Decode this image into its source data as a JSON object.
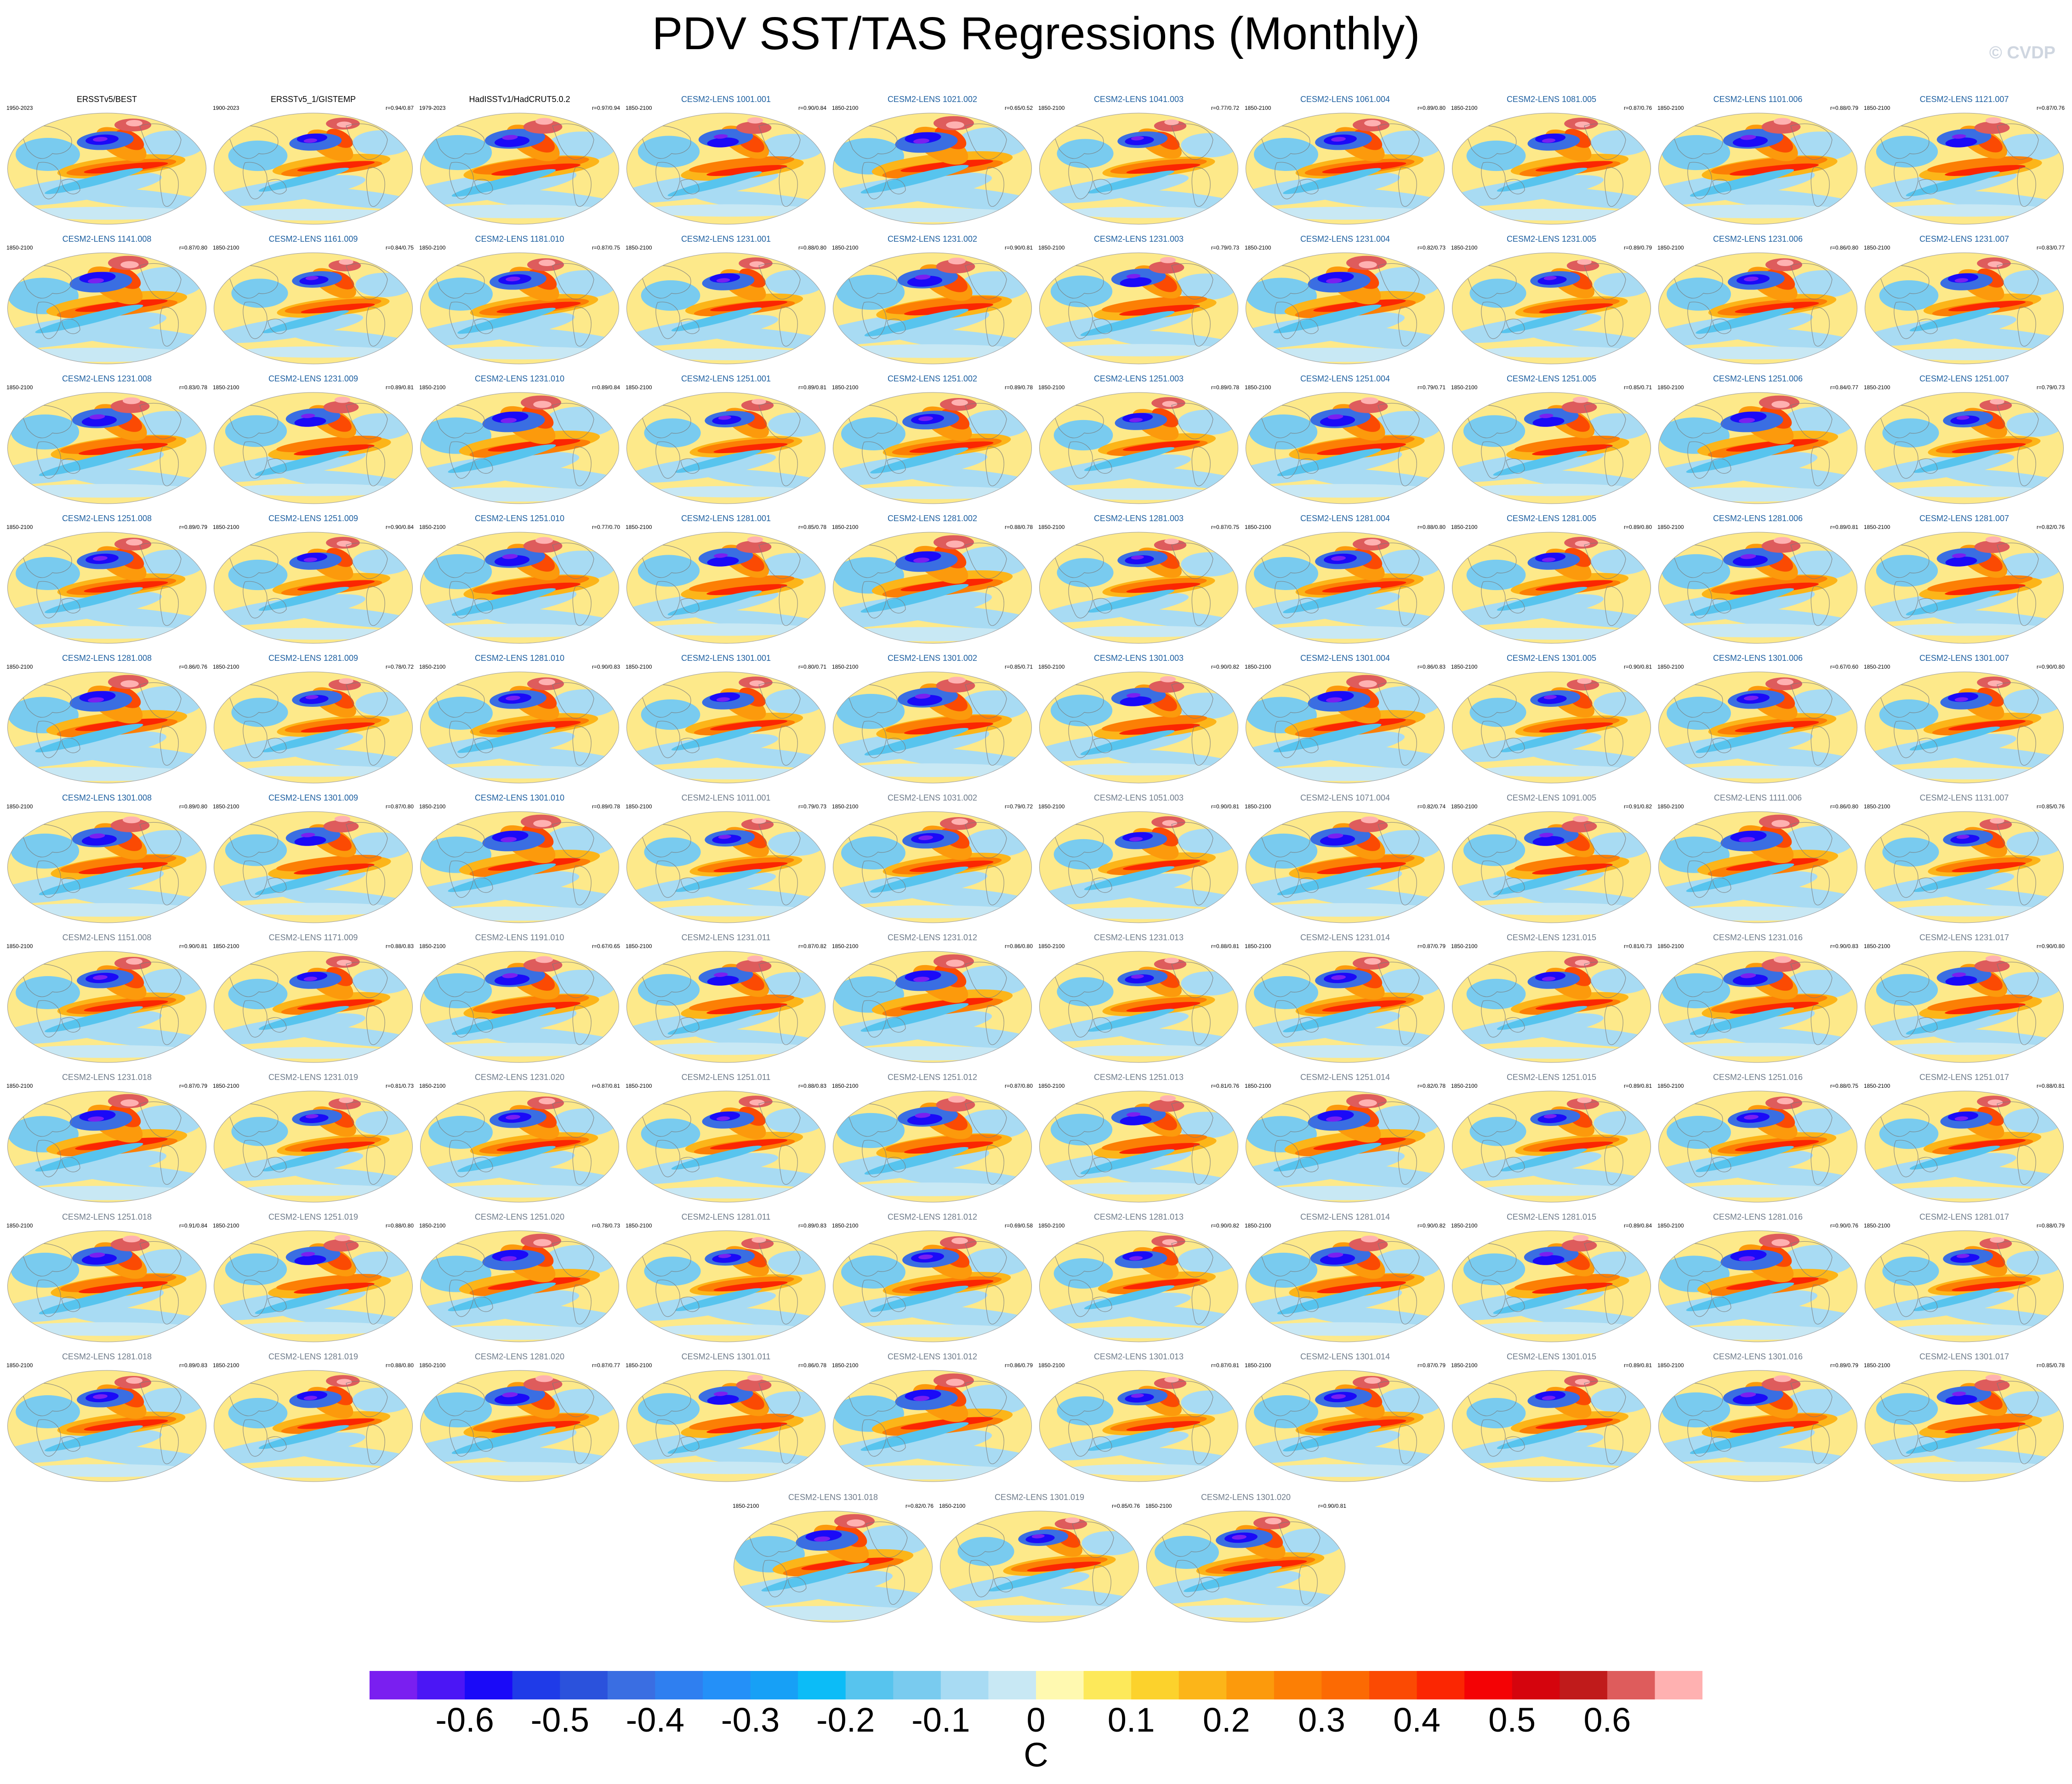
{
  "title": "PDV SST/TAS Regressions (Monthly)",
  "watermark": "© CVDP",
  "observations_color": "#000000",
  "model_colors": [
    "#1d5fa0",
    "#6e7b8a"
  ],
  "panels": [
    {
      "title": "ERSSTv5/BEST",
      "years": "1950-2023",
      "stat": "",
      "style": 0,
      "color": 0
    },
    {
      "title": "ERSSTv5_1/GISTEMP",
      "years": "1900-2023",
      "stat": "r=0.94/0.87",
      "style": 1,
      "color": 0
    },
    {
      "title": "HadISSTv1/HadCRUT5.0.2",
      "years": "1979-2023",
      "stat": "r=0.97/0.94",
      "style": 2,
      "color": 0
    },
    {
      "title": "CESM2-LENS 1001.001",
      "years": "1850-2100",
      "stat": "r=0.90/0.84",
      "style": 3,
      "color": 1
    },
    {
      "title": "CESM2-LENS 1021.002",
      "years": "1850-2100",
      "stat": "r=0.65/0.52",
      "style": 4,
      "color": 1
    },
    {
      "title": "CESM2-LENS 1041.003",
      "years": "1850-2100",
      "stat": "r=0.77/0.72",
      "style": 5,
      "color": 1
    },
    {
      "title": "CESM2-LENS 1061.004",
      "years": "1850-2100",
      "stat": "r=0.89/0.80",
      "style": 0,
      "color": 1
    },
    {
      "title": "CESM2-LENS 1081.005",
      "years": "1850-2100",
      "stat": "r=0.87/0.76",
      "style": 1,
      "color": 1
    },
    {
      "title": "CESM2-LENS 1101.006",
      "years": "1850-2100",
      "stat": "r=0.88/0.79",
      "style": 2,
      "color": 1
    },
    {
      "title": "CESM2-LENS 1121.007",
      "years": "1850-2100",
      "stat": "r=0.87/0.76",
      "style": 3,
      "color": 1
    },
    {
      "title": "CESM2-LENS 1141.008",
      "years": "1850-2100",
      "stat": "r=0.87/0.80",
      "style": 4,
      "color": 1
    },
    {
      "title": "CESM2-LENS 1161.009",
      "years": "1850-2100",
      "stat": "r=0.84/0.75",
      "style": 5,
      "color": 1
    },
    {
      "title": "CESM2-LENS 1181.010",
      "years": "1850-2100",
      "stat": "r=0.87/0.75",
      "style": 0,
      "color": 1
    },
    {
      "title": "CESM2-LENS 1231.001",
      "years": "1850-2100",
      "stat": "r=0.88/0.80",
      "style": 1,
      "color": 1
    },
    {
      "title": "CESM2-LENS 1231.002",
      "years": "1850-2100",
      "stat": "r=0.90/0.81",
      "style": 2,
      "color": 1
    },
    {
      "title": "CESM2-LENS 1231.003",
      "years": "1850-2100",
      "stat": "r=0.79/0.73",
      "style": 3,
      "color": 1
    },
    {
      "title": "CESM2-LENS 1231.004",
      "years": "1850-2100",
      "stat": "r=0.82/0.73",
      "style": 4,
      "color": 1
    },
    {
      "title": "CESM2-LENS 1231.005",
      "years": "1850-2100",
      "stat": "r=0.89/0.79",
      "style": 5,
      "color": 1
    },
    {
      "title": "CESM2-LENS 1231.006",
      "years": "1850-2100",
      "stat": "r=0.86/0.80",
      "style": 0,
      "color": 1
    },
    {
      "title": "CESM2-LENS 1231.007",
      "years": "1850-2100",
      "stat": "r=0.83/0.77",
      "style": 1,
      "color": 1
    },
    {
      "title": "CESM2-LENS 1231.008",
      "years": "1850-2100",
      "stat": "r=0.83/0.78",
      "style": 2,
      "color": 1
    },
    {
      "title": "CESM2-LENS 1231.009",
      "years": "1850-2100",
      "stat": "r=0.89/0.81",
      "style": 3,
      "color": 1
    },
    {
      "title": "CESM2-LENS 1231.010",
      "years": "1850-2100",
      "stat": "r=0.89/0.84",
      "style": 4,
      "color": 1
    },
    {
      "title": "CESM2-LENS 1251.001",
      "years": "1850-2100",
      "stat": "r=0.89/0.81",
      "style": 5,
      "color": 1
    },
    {
      "title": "CESM2-LENS 1251.002",
      "years": "1850-2100",
      "stat": "r=0.89/0.78",
      "style": 0,
      "color": 1
    },
    {
      "title": "CESM2-LENS 1251.003",
      "years": "1850-2100",
      "stat": "r=0.89/0.78",
      "style": 1,
      "color": 1
    },
    {
      "title": "CESM2-LENS 1251.004",
      "years": "1850-2100",
      "stat": "r=0.79/0.71",
      "style": 2,
      "color": 1
    },
    {
      "title": "CESM2-LENS 1251.005",
      "years": "1850-2100",
      "stat": "r=0.85/0.71",
      "style": 3,
      "color": 1
    },
    {
      "title": "CESM2-LENS 1251.006",
      "years": "1850-2100",
      "stat": "r=0.84/0.77",
      "style": 4,
      "color": 1
    },
    {
      "title": "CESM2-LENS 1251.007",
      "years": "1850-2100",
      "stat": "r=0.79/0.73",
      "style": 5,
      "color": 1
    },
    {
      "title": "CESM2-LENS 1251.008",
      "years": "1850-2100",
      "stat": "r=0.89/0.79",
      "style": 0,
      "color": 1
    },
    {
      "title": "CESM2-LENS 1251.009",
      "years": "1850-2100",
      "stat": "r=0.90/0.84",
      "style": 1,
      "color": 1
    },
    {
      "title": "CESM2-LENS 1251.010",
      "years": "1850-2100",
      "stat": "r=0.77/0.70",
      "style": 2,
      "color": 1
    },
    {
      "title": "CESM2-LENS 1281.001",
      "years": "1850-2100",
      "stat": "r=0.85/0.78",
      "style": 3,
      "color": 1
    },
    {
      "title": "CESM2-LENS 1281.002",
      "years": "1850-2100",
      "stat": "r=0.88/0.78",
      "style": 4,
      "color": 1
    },
    {
      "title": "CESM2-LENS 1281.003",
      "years": "1850-2100",
      "stat": "r=0.87/0.75",
      "style": 5,
      "color": 1
    },
    {
      "title": "CESM2-LENS 1281.004",
      "years": "1850-2100",
      "stat": "r=0.88/0.80",
      "style": 0,
      "color": 1
    },
    {
      "title": "CESM2-LENS 1281.005",
      "years": "1850-2100",
      "stat": "r=0.89/0.80",
      "style": 1,
      "color": 1
    },
    {
      "title": "CESM2-LENS 1281.006",
      "years": "1850-2100",
      "stat": "r=0.89/0.81",
      "style": 2,
      "color": 1
    },
    {
      "title": "CESM2-LENS 1281.007",
      "years": "1850-2100",
      "stat": "r=0.82/0.76",
      "style": 3,
      "color": 1
    },
    {
      "title": "CESM2-LENS 1281.008",
      "years": "1850-2100",
      "stat": "r=0.86/0.76",
      "style": 4,
      "color": 1
    },
    {
      "title": "CESM2-LENS 1281.009",
      "years": "1850-2100",
      "stat": "r=0.78/0.72",
      "style": 5,
      "color": 1
    },
    {
      "title": "CESM2-LENS 1281.010",
      "years": "1850-2100",
      "stat": "r=0.90/0.83",
      "style": 0,
      "color": 1
    },
    {
      "title": "CESM2-LENS 1301.001",
      "years": "1850-2100",
      "stat": "r=0.80/0.71",
      "style": 1,
      "color": 1
    },
    {
      "title": "CESM2-LENS 1301.002",
      "years": "1850-2100",
      "stat": "r=0.85/0.71",
      "style": 2,
      "color": 1
    },
    {
      "title": "CESM2-LENS 1301.003",
      "years": "1850-2100",
      "stat": "r=0.90/0.82",
      "style": 3,
      "color": 1
    },
    {
      "title": "CESM2-LENS 1301.004",
      "years": "1850-2100",
      "stat": "r=0.86/0.83",
      "style": 4,
      "color": 1
    },
    {
      "title": "CESM2-LENS 1301.005",
      "years": "1850-2100",
      "stat": "r=0.90/0.81",
      "style": 5,
      "color": 1
    },
    {
      "title": "CESM2-LENS 1301.006",
      "years": "1850-2100",
      "stat": "r=0.67/0.60",
      "style": 0,
      "color": 1
    },
    {
      "title": "CESM2-LENS 1301.007",
      "years": "1850-2100",
      "stat": "r=0.90/0.80",
      "style": 1,
      "color": 1
    },
    {
      "title": "CESM2-LENS 1301.008",
      "years": "1850-2100",
      "stat": "r=0.89/0.80",
      "style": 2,
      "color": 1
    },
    {
      "title": "CESM2-LENS 1301.009",
      "years": "1850-2100",
      "stat": "r=0.87/0.80",
      "style": 3,
      "color": 1
    },
    {
      "title": "CESM2-LENS 1301.010",
      "years": "1850-2100",
      "stat": "r=0.89/0.78",
      "style": 4,
      "color": 1
    },
    {
      "title": "CESM2-LENS 1011.001",
      "years": "1850-2100",
      "stat": "r=0.79/0.73",
      "style": 5,
      "color": 2
    },
    {
      "title": "CESM2-LENS 1031.002",
      "years": "1850-2100",
      "stat": "r=0.79/0.72",
      "style": 0,
      "color": 2
    },
    {
      "title": "CESM2-LENS 1051.003",
      "years": "1850-2100",
      "stat": "r=0.90/0.81",
      "style": 1,
      "color": 2
    },
    {
      "title": "CESM2-LENS 1071.004",
      "years": "1850-2100",
      "stat": "r=0.82/0.74",
      "style": 2,
      "color": 2
    },
    {
      "title": "CESM2-LENS 1091.005",
      "years": "1850-2100",
      "stat": "r=0.91/0.82",
      "style": 3,
      "color": 2
    },
    {
      "title": "CESM2-LENS 1111.006",
      "years": "1850-2100",
      "stat": "r=0.86/0.80",
      "style": 4,
      "color": 2
    },
    {
      "title": "CESM2-LENS 1131.007",
      "years": "1850-2100",
      "stat": "r=0.85/0.76",
      "style": 5,
      "color": 2
    },
    {
      "title": "CESM2-LENS 1151.008",
      "years": "1850-2100",
      "stat": "r=0.90/0.81",
      "style": 0,
      "color": 2
    },
    {
      "title": "CESM2-LENS 1171.009",
      "years": "1850-2100",
      "stat": "r=0.88/0.83",
      "style": 1,
      "color": 2
    },
    {
      "title": "CESM2-LENS 1191.010",
      "years": "1850-2100",
      "stat": "r=0.67/0.65",
      "style": 2,
      "color": 2
    },
    {
      "title": "CESM2-LENS 1231.011",
      "years": "1850-2100",
      "stat": "r=0.87/0.82",
      "style": 3,
      "color": 2
    },
    {
      "title": "CESM2-LENS 1231.012",
      "years": "1850-2100",
      "stat": "r=0.86/0.80",
      "style": 4,
      "color": 2
    },
    {
      "title": "CESM2-LENS 1231.013",
      "years": "1850-2100",
      "stat": "r=0.88/0.81",
      "style": 5,
      "color": 2
    },
    {
      "title": "CESM2-LENS 1231.014",
      "years": "1850-2100",
      "stat": "r=0.87/0.79",
      "style": 0,
      "color": 2
    },
    {
      "title": "CESM2-LENS 1231.015",
      "years": "1850-2100",
      "stat": "r=0.81/0.73",
      "style": 1,
      "color": 2
    },
    {
      "title": "CESM2-LENS 1231.016",
      "years": "1850-2100",
      "stat": "r=0.90/0.83",
      "style": 2,
      "color": 2
    },
    {
      "title": "CESM2-LENS 1231.017",
      "years": "1850-2100",
      "stat": "r=0.90/0.80",
      "style": 3,
      "color": 2
    },
    {
      "title": "CESM2-LENS 1231.018",
      "years": "1850-2100",
      "stat": "r=0.87/0.79",
      "style": 4,
      "color": 2
    },
    {
      "title": "CESM2-LENS 1231.019",
      "years": "1850-2100",
      "stat": "r=0.81/0.73",
      "style": 5,
      "color": 2
    },
    {
      "title": "CESM2-LENS 1231.020",
      "years": "1850-2100",
      "stat": "r=0.87/0.81",
      "style": 0,
      "color": 2
    },
    {
      "title": "CESM2-LENS 1251.011",
      "years": "1850-2100",
      "stat": "r=0.88/0.83",
      "style": 1,
      "color": 2
    },
    {
      "title": "CESM2-LENS 1251.012",
      "years": "1850-2100",
      "stat": "r=0.87/0.80",
      "style": 2,
      "color": 2
    },
    {
      "title": "CESM2-LENS 1251.013",
      "years": "1850-2100",
      "stat": "r=0.81/0.76",
      "style": 3,
      "color": 2
    },
    {
      "title": "CESM2-LENS 1251.014",
      "years": "1850-2100",
      "stat": "r=0.82/0.78",
      "style": 4,
      "color": 2
    },
    {
      "title": "CESM2-LENS 1251.015",
      "years": "1850-2100",
      "stat": "r=0.89/0.81",
      "style": 5,
      "color": 2
    },
    {
      "title": "CESM2-LENS 1251.016",
      "years": "1850-2100",
      "stat": "r=0.88/0.75",
      "style": 0,
      "color": 2
    },
    {
      "title": "CESM2-LENS 1251.017",
      "years": "1850-2100",
      "stat": "r=0.88/0.81",
      "style": 1,
      "color": 2
    },
    {
      "title": "CESM2-LENS 1251.018",
      "years": "1850-2100",
      "stat": "r=0.91/0.84",
      "style": 2,
      "color": 2
    },
    {
      "title": "CESM2-LENS 1251.019",
      "years": "1850-2100",
      "stat": "r=0.88/0.80",
      "style": 3,
      "color": 2
    },
    {
      "title": "CESM2-LENS 1251.020",
      "years": "1850-2100",
      "stat": "r=0.78/0.73",
      "style": 4,
      "color": 2
    },
    {
      "title": "CESM2-LENS 1281.011",
      "years": "1850-2100",
      "stat": "r=0.89/0.83",
      "style": 5,
      "color": 2
    },
    {
      "title": "CESM2-LENS 1281.012",
      "years": "1850-2100",
      "stat": "r=0.69/0.58",
      "style": 0,
      "color": 2
    },
    {
      "title": "CESM2-LENS 1281.013",
      "years": "1850-2100",
      "stat": "r=0.90/0.82",
      "style": 1,
      "color": 2
    },
    {
      "title": "CESM2-LENS 1281.014",
      "years": "1850-2100",
      "stat": "r=0.90/0.82",
      "style": 2,
      "color": 2
    },
    {
      "title": "CESM2-LENS 1281.015",
      "years": "1850-2100",
      "stat": "r=0.89/0.84",
      "style": 3,
      "color": 2
    },
    {
      "title": "CESM2-LENS 1281.016",
      "years": "1850-2100",
      "stat": "r=0.90/0.76",
      "style": 4,
      "color": 2
    },
    {
      "title": "CESM2-LENS 1281.017",
      "years": "1850-2100",
      "stat": "r=0.88/0.79",
      "style": 5,
      "color": 2
    },
    {
      "title": "CESM2-LENS 1281.018",
      "years": "1850-2100",
      "stat": "r=0.89/0.83",
      "style": 0,
      "color": 2
    },
    {
      "title": "CESM2-LENS 1281.019",
      "years": "1850-2100",
      "stat": "r=0.88/0.80",
      "style": 1,
      "color": 2
    },
    {
      "title": "CESM2-LENS 1281.020",
      "years": "1850-2100",
      "stat": "r=0.87/0.77",
      "style": 2,
      "color": 2
    },
    {
      "title": "CESM2-LENS 1301.011",
      "years": "1850-2100",
      "stat": "r=0.86/0.78",
      "style": 3,
      "color": 2
    },
    {
      "title": "CESM2-LENS 1301.012",
      "years": "1850-2100",
      "stat": "r=0.86/0.79",
      "style": 4,
      "color": 2
    },
    {
      "title": "CESM2-LENS 1301.013",
      "years": "1850-2100",
      "stat": "r=0.87/0.81",
      "style": 5,
      "color": 2
    },
    {
      "title": "CESM2-LENS 1301.014",
      "years": "1850-2100",
      "stat": "r=0.87/0.79",
      "style": 0,
      "color": 2
    },
    {
      "title": "CESM2-LENS 1301.015",
      "years": "1850-2100",
      "stat": "r=0.89/0.81",
      "style": 1,
      "color": 2
    },
    {
      "title": "CESM2-LENS 1301.016",
      "years": "1850-2100",
      "stat": "r=0.89/0.79",
      "style": 2,
      "color": 2
    },
    {
      "title": "CESM2-LENS 1301.017",
      "years": "1850-2100",
      "stat": "r=0.85/0.78",
      "style": 3,
      "color": 2
    },
    {
      "title": "CESM2-LENS 1301.018",
      "years": "1850-2100",
      "stat": "r=0.82/0.76",
      "style": 4,
      "color": 2
    },
    {
      "title": "CESM2-LENS 1301.019",
      "years": "1850-2100",
      "stat": "r=0.85/0.76",
      "style": 5,
      "color": 2
    },
    {
      "title": "CESM2-LENS 1301.020",
      "years": "1850-2100",
      "stat": "r=0.90/0.81",
      "style": 0,
      "color": 2
    }
  ],
  "colorbar": {
    "units": "C",
    "labels": [
      "-0.6",
      "-0.5",
      "-0.4",
      "-0.3",
      "-0.2",
      "-0.1",
      "0",
      "0.1",
      "0.2",
      "0.3",
      "0.4",
      "0.5",
      "0.6"
    ],
    "colors": [
      "#7a1ff0",
      "#4b16f5",
      "#1a0af8",
      "#1f3be8",
      "#2b52dc",
      "#3a6ee2",
      "#2f7ff0",
      "#2490f8",
      "#17a0f6",
      "#0cbcf7",
      "#57c4ee",
      "#79cbef",
      "#a8dbf3",
      "#c8e8f4",
      "#fff9b0",
      "#fde95a",
      "#fcd22c",
      "#fcb519",
      "#fc9a0c",
      "#fc7f05",
      "#fc6a03",
      "#fb4a03",
      "#fb2602",
      "#f40205",
      "#d5040d",
      "#c01b1b",
      "#de5c5c",
      "#ffb1b1"
    ]
  }
}
